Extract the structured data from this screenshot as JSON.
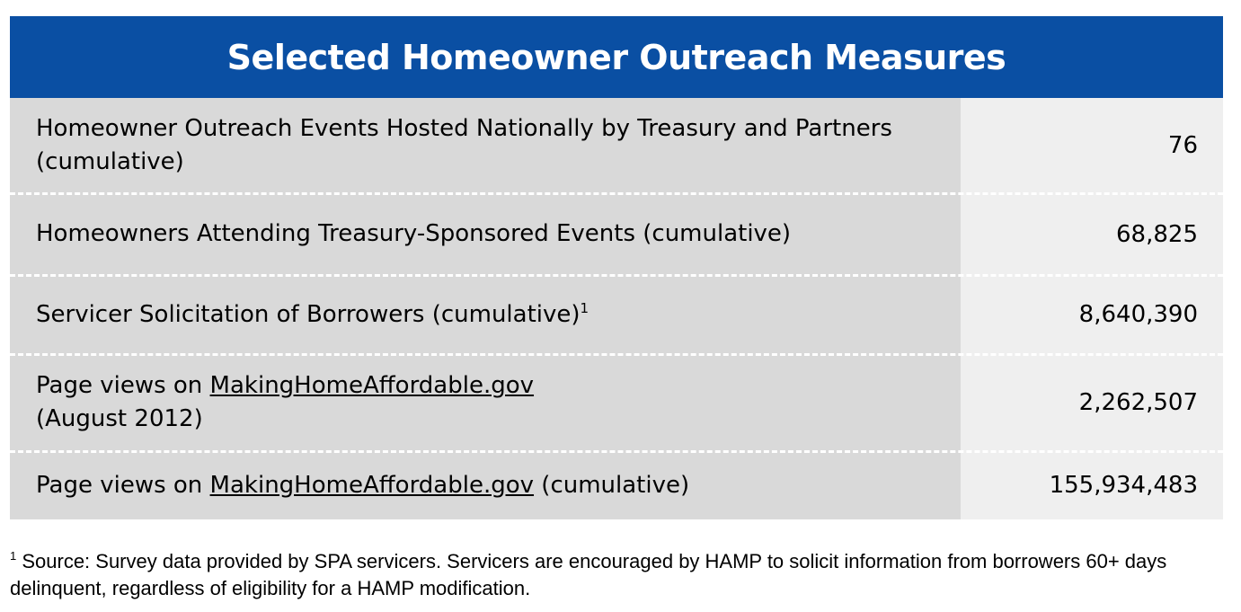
{
  "title": "Selected Homeowner Outreach Measures",
  "rows": [
    {
      "label_line1": "Homeowner Outreach Events Hosted Nationally by Treasury and Partners",
      "label_line2": "(cumulative)",
      "value": "76"
    },
    {
      "label": "Homeowners Attending Treasury-Sponsored Events (cumulative)",
      "value": "68,825"
    },
    {
      "label": "Servicer Solicitation of Borrowers (cumulative)",
      "sup": "1",
      "value": "8,640,390"
    },
    {
      "label_prefix": "Page views on ",
      "link": "MakingHomeAffordable.gov",
      "label_line2": "(August 2012)",
      "value": "2,262,507"
    },
    {
      "label_prefix": "Page views on ",
      "link": "MakingHomeAffordable.gov",
      "label_suffix": " (cumulative)",
      "value": "155,934,483"
    }
  ],
  "footnote": {
    "marker": "1",
    "text": " Source: Survey data provided by SPA servicers. Servicers are encouraged by HAMP to solicit information from borrowers 60+ days delinquent, regardless of eligibility for a HAMP modification."
  }
}
